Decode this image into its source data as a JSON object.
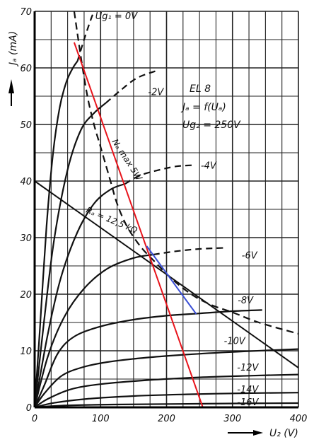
{
  "chart_data": {
    "type": "line",
    "title": "",
    "xlabel": "U₂ (V)",
    "ylabel": "Jₐ (mA)",
    "xlim": [
      0,
      400
    ],
    "ylim": [
      0,
      70
    ],
    "grid": true,
    "x_ticks": [
      0,
      100,
      200,
      300,
      400
    ],
    "y_ticks": [
      0,
      10,
      20,
      30,
      40,
      50,
      60,
      70
    ],
    "info": {
      "tube": "EL 8",
      "relation": "Jₐ = f(Uₐ)",
      "screen_voltage": "Ug₂ = 250V"
    },
    "series": [
      {
        "name": "Ug₁ = 0V",
        "label_at": [
          92,
          68.6
        ],
        "style": "solid-dashed",
        "points": [
          [
            0,
            0
          ],
          [
            8,
            14
          ],
          [
            18,
            32
          ],
          [
            28,
            45
          ],
          [
            38,
            53
          ],
          [
            48,
            57.5
          ],
          [
            58,
            60
          ],
          [
            65,
            61.2
          ]
        ],
        "dashed": [
          [
            65,
            61.2
          ],
          [
            75,
            65
          ],
          [
            85,
            68.5
          ],
          [
            90,
            70
          ]
        ]
      },
      {
        "name": "-2V",
        "label_at": [
          172,
          55.2
        ],
        "style": "solid-dashed",
        "points": [
          [
            0,
            0
          ],
          [
            15,
            16
          ],
          [
            30,
            30
          ],
          [
            50,
            42
          ],
          [
            70,
            49
          ],
          [
            90,
            52
          ],
          [
            108,
            53.8
          ]
        ],
        "dashed": [
          [
            108,
            53.8
          ],
          [
            130,
            56
          ],
          [
            155,
            58.2
          ],
          [
            185,
            59.5
          ]
        ]
      },
      {
        "name": "-4V",
        "label_at": [
          252,
          42.2
        ],
        "style": "solid-dashed",
        "points": [
          [
            0,
            0
          ],
          [
            20,
            13
          ],
          [
            40,
            23
          ],
          [
            65,
            31
          ],
          [
            90,
            36
          ],
          [
            115,
            38.5
          ],
          [
            137,
            39.5
          ]
        ],
        "dashed": [
          [
            137,
            39.5
          ],
          [
            160,
            41
          ],
          [
            190,
            42
          ],
          [
            215,
            42.6
          ],
          [
            240,
            42.8
          ]
        ]
      },
      {
        "name": "-6V",
        "label_at": [
          314,
          26.3
        ],
        "style": "solid-dashed",
        "points": [
          [
            0,
            0
          ],
          [
            20,
            9
          ],
          [
            45,
            16
          ],
          [
            75,
            21
          ],
          [
            110,
            24.5
          ],
          [
            150,
            26.4
          ],
          [
            180,
            27
          ]
        ],
        "dashed": [
          [
            180,
            27
          ],
          [
            215,
            27.6
          ],
          [
            250,
            28
          ],
          [
            290,
            28.2
          ]
        ]
      },
      {
        "name": "-8V",
        "label_at": [
          308,
          18.4
        ],
        "style": "solid",
        "points": [
          [
            0,
            0
          ],
          [
            15,
            4
          ],
          [
            35,
            9.5
          ],
          [
            60,
            12.5
          ],
          [
            100,
            14.3
          ],
          [
            150,
            15.5
          ],
          [
            200,
            16.2
          ],
          [
            250,
            16.6
          ],
          [
            300,
            17
          ],
          [
            345,
            17.2
          ]
        ],
        "dashed": []
      },
      {
        "name": "-10V",
        "label_at": [
          287,
          11.2
        ],
        "style": "solid",
        "points": [
          [
            0,
            0
          ],
          [
            15,
            2.5
          ],
          [
            40,
            5.5
          ],
          [
            70,
            7
          ],
          [
            110,
            8
          ],
          [
            170,
            8.8
          ],
          [
            240,
            9.4
          ],
          [
            320,
            9.9
          ],
          [
            400,
            10.3
          ]
        ],
        "dashed": []
      },
      {
        "name": "-12V",
        "label_at": [
          307,
          6.5
        ],
        "style": "solid",
        "points": [
          [
            0,
            0
          ],
          [
            20,
            1.5
          ],
          [
            55,
            3.2
          ],
          [
            100,
            4.1
          ],
          [
            170,
            4.8
          ],
          [
            250,
            5.3
          ],
          [
            330,
            5.6
          ],
          [
            400,
            5.8
          ]
        ],
        "dashed": []
      },
      {
        "name": "-14V",
        "label_at": [
          307,
          2.6
        ],
        "style": "solid",
        "points": [
          [
            0,
            0
          ],
          [
            30,
            0.8
          ],
          [
            80,
            1.5
          ],
          [
            150,
            2
          ],
          [
            230,
            2.3
          ],
          [
            320,
            2.5
          ],
          [
            400,
            2.6
          ]
        ],
        "dashed": []
      },
      {
        "name": "-16V",
        "label_at": [
          307,
          0.4
        ],
        "style": "solid",
        "points": [
          [
            0,
            0
          ],
          [
            40,
            0.3
          ],
          [
            120,
            0.5
          ],
          [
            220,
            0.6
          ],
          [
            320,
            0.7
          ],
          [
            400,
            0.75
          ]
        ],
        "dashed": []
      }
    ],
    "max_dissipation": {
      "label": "Nₐ max 5W",
      "label_at": [
        117,
        47
      ],
      "points": [
        [
          60,
          70
        ],
        [
          70,
          62
        ],
        [
          80,
          55
        ],
        [
          90,
          50
        ],
        [
          100,
          46
        ],
        [
          115,
          40
        ],
        [
          125,
          36
        ],
        [
          140,
          32
        ],
        [
          160,
          28.5
        ],
        [
          180,
          26
        ],
        [
          210,
          22.5
        ],
        [
          240,
          19.8
        ],
        [
          270,
          18
        ],
        [
          300,
          16.8
        ],
        [
          340,
          15
        ],
        [
          400,
          13
        ]
      ]
    },
    "load_line": {
      "label": "Rₐ = 12,5 kΩ",
      "label_at": [
        77,
        34.5
      ],
      "points": [
        [
          0,
          40
        ],
        [
          400,
          7
        ]
      ]
    },
    "red_line": {
      "color": "#e8141c",
      "points": [
        [
          60,
          64.5
        ],
        [
          255,
          0
        ]
      ]
    },
    "blue_line": {
      "color": "#3a4fd6",
      "points": [
        [
          170,
          28.5
        ],
        [
          245,
          16.5
        ]
      ]
    }
  }
}
